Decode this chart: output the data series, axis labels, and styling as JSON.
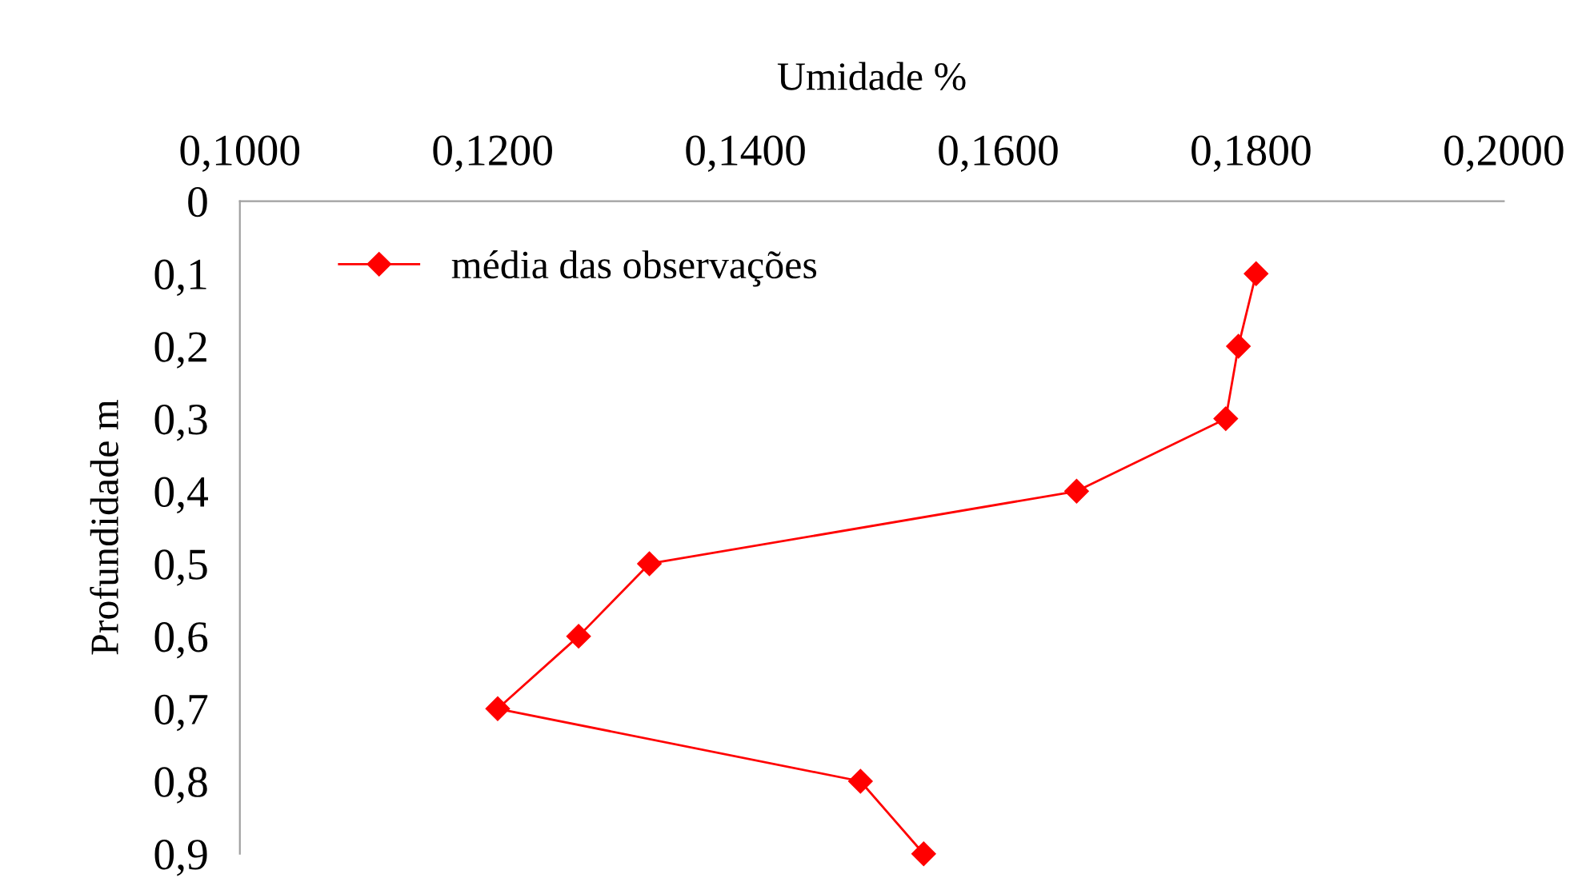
{
  "chart_data": {
    "type": "line",
    "xlabel": "Umidade %",
    "ylabel": "Profundidade m",
    "series": [
      {
        "name": "média das observações",
        "color": "#ff0000",
        "x": [
          0.1804,
          0.179,
          0.178,
          0.1662,
          0.1324,
          0.1268,
          0.1204,
          0.1491,
          0.1541
        ],
        "values": [
          0.1,
          0.2,
          0.3,
          0.4,
          0.5,
          0.6,
          0.7,
          0.8,
          0.9
        ]
      }
    ],
    "xlim": [
      0.1,
      0.2
    ],
    "xticks": [
      {
        "value": 0.1,
        "label": "0,1000"
      },
      {
        "value": 0.12,
        "label": "0,1200"
      },
      {
        "value": 0.14,
        "label": "0,1400"
      },
      {
        "value": 0.16,
        "label": "0,1600"
      },
      {
        "value": 0.18,
        "label": "0,1800"
      },
      {
        "value": 0.2,
        "label": "0,2000"
      }
    ],
    "ylim": [
      0.9,
      0
    ],
    "yticks": [
      0,
      {
        "value": 0.1,
        "label": "0,1"
      },
      {
        "value": 0.2,
        "label": "0,2"
      },
      {
        "value": 0.3,
        "label": "0,3"
      },
      {
        "value": 0.4,
        "label": "0,4"
      },
      {
        "value": 0.5,
        "label": "0,5"
      },
      {
        "value": 0.6,
        "label": "0,6"
      },
      {
        "value": 0.7,
        "label": "0,7"
      },
      {
        "value": 0.8,
        "label": "0,8"
      },
      {
        "value": 0.9,
        "label": "0,9"
      }
    ],
    "legend": "top left",
    "marker": "diamond",
    "line_style": "solid",
    "grid": false
  }
}
